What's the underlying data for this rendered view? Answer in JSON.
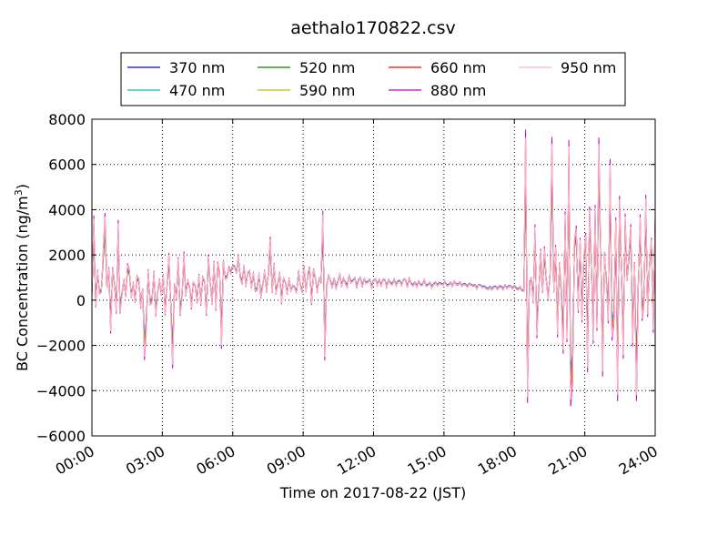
{
  "chart_data": {
    "type": "line",
    "title": "aethalo170822.csv",
    "xlabel": "Time on 2017-08-22 (JST)",
    "ylabel": "BC Concentration (ng/m",
    "ylabel_sup": "3",
    "ylabel_tail": ")",
    "x_range_hours": [
      0,
      24
    ],
    "xticks": [
      "00:00",
      "03:00",
      "06:00",
      "09:00",
      "12:00",
      "15:00",
      "18:00",
      "21:00",
      "24:00"
    ],
    "ylim": [
      -6000,
      8000
    ],
    "yticks": [
      "−6000",
      "−4000",
      "−2000",
      "0",
      "2000",
      "4000",
      "6000",
      "8000"
    ],
    "grid": true,
    "legend_position": "top",
    "series": [
      {
        "name": "370 nm",
        "color": "#0000ff",
        "amp_scale": 0.78,
        "offset": 40
      },
      {
        "name": "470 nm",
        "color": "#00bfbf",
        "amp_scale": 0.8,
        "offset": 20
      },
      {
        "name": "520 nm",
        "color": "#008000",
        "amp_scale": 0.84,
        "offset": 0
      },
      {
        "name": "590 nm",
        "color": "#bfbf00",
        "amp_scale": 0.88,
        "offset": 10
      },
      {
        "name": "660 nm",
        "color": "#ff0000",
        "amp_scale": 0.93,
        "offset": -10
      },
      {
        "name": "880 nm",
        "color": "#bf00bf",
        "amp_scale": 1.05,
        "offset": 0
      },
      {
        "name": "950 nm",
        "color": "#ffb6c1",
        "amp_scale": 1.0,
        "offset": 0
      }
    ],
    "envelope": [
      {
        "time_h": 0.0,
        "base": 700,
        "amp": 1700
      },
      {
        "time_h": 1.0,
        "base": 500,
        "amp": 1900
      },
      {
        "time_h": 2.0,
        "base": 400,
        "amp": 2100
      },
      {
        "time_h": 3.0,
        "base": 400,
        "amp": 2000
      },
      {
        "time_h": 4.0,
        "base": 500,
        "amp": 1600
      },
      {
        "time_h": 5.0,
        "base": 500,
        "amp": 1500
      },
      {
        "time_h": 6.0,
        "base": 1500,
        "amp": 700
      },
      {
        "time_h": 7.0,
        "base": 700,
        "amp": 700
      },
      {
        "time_h": 8.0,
        "base": 800,
        "amp": 1000
      },
      {
        "time_h": 8.5,
        "base": 500,
        "amp": 300
      },
      {
        "time_h": 9.0,
        "base": 700,
        "amp": 1100
      },
      {
        "time_h": 10.0,
        "base": 800,
        "amp": 500
      },
      {
        "time_h": 11.0,
        "base": 900,
        "amp": 350
      },
      {
        "time_h": 12.0,
        "base": 800,
        "amp": 300
      },
      {
        "time_h": 13.0,
        "base": 800,
        "amp": 260
      },
      {
        "time_h": 14.0,
        "base": 700,
        "amp": 220
      },
      {
        "time_h": 15.0,
        "base": 700,
        "amp": 180
      },
      {
        "time_h": 16.0,
        "base": 650,
        "amp": 180
      },
      {
        "time_h": 17.0,
        "base": 550,
        "amp": 130
      },
      {
        "time_h": 18.0,
        "base": 550,
        "amp": 130
      },
      {
        "time_h": 18.5,
        "base": 400,
        "amp": 200
      },
      {
        "time_h": 19.0,
        "base": 900,
        "amp": 3800
      },
      {
        "time_h": 19.5,
        "base": 600,
        "amp": 400
      },
      {
        "time_h": 20.0,
        "base": 1200,
        "amp": 4200
      },
      {
        "time_h": 21.0,
        "base": 1200,
        "amp": 4600
      },
      {
        "time_h": 22.0,
        "base": 1300,
        "amp": 4500
      },
      {
        "time_h": 23.0,
        "base": 1000,
        "amp": 3800
      },
      {
        "time_h": 24.0,
        "base": 1500,
        "amp": 3500
      }
    ],
    "samples": 300,
    "spikes": [
      {
        "time_h": 0.1,
        "value": 3600
      },
      {
        "time_h": 0.6,
        "value": 3700
      },
      {
        "time_h": 1.1,
        "value": 3400
      },
      {
        "time_h": 2.2,
        "value": -2500
      },
      {
        "time_h": 3.4,
        "value": -2850
      },
      {
        "time_h": 5.5,
        "value": -2000
      },
      {
        "time_h": 7.6,
        "value": 2700
      },
      {
        "time_h": 9.8,
        "value": 3800
      },
      {
        "time_h": 9.9,
        "value": -2500
      },
      {
        "time_h": 18.5,
        "value": 7200
      },
      {
        "time_h": 18.55,
        "value": -4300
      },
      {
        "time_h": 19.6,
        "value": 6900
      },
      {
        "time_h": 20.3,
        "value": 6800
      },
      {
        "time_h": 20.4,
        "value": -4400
      },
      {
        "time_h": 21.6,
        "value": 6900
      },
      {
        "time_h": 22.1,
        "value": 6000
      },
      {
        "time_h": 22.4,
        "value": -4200
      },
      {
        "time_h": 23.2,
        "value": -4200
      },
      {
        "time_h": 23.6,
        "value": 4500
      }
    ]
  }
}
